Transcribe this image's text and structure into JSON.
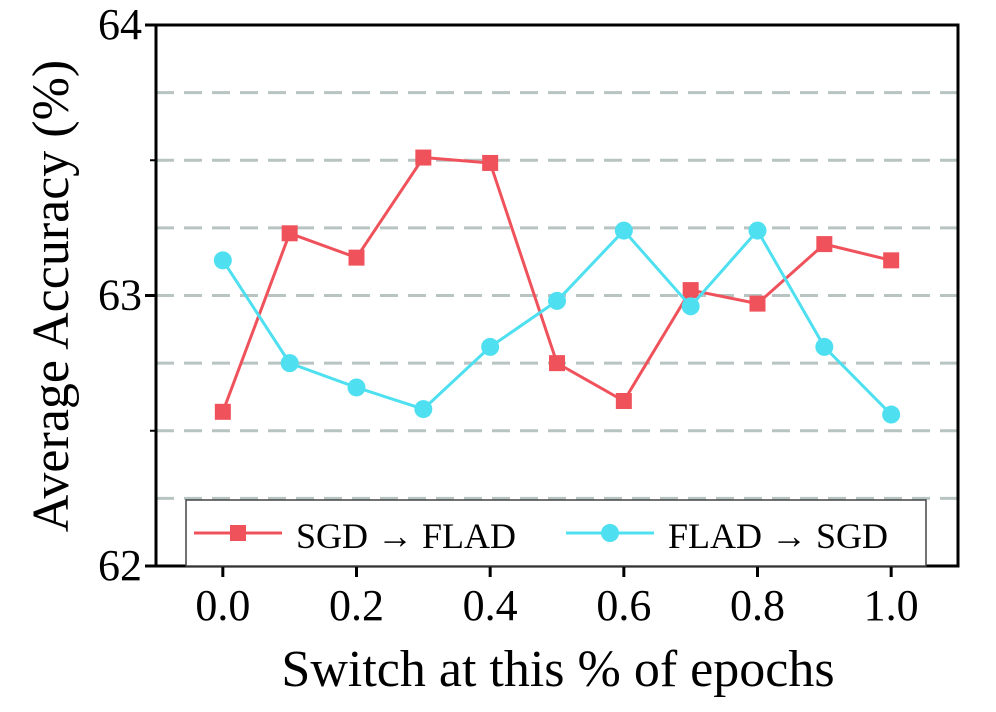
{
  "chart_data": {
    "type": "line",
    "xlabel": "Switch at this % of epochs",
    "ylabel": "Average Accuracy (%)",
    "xlim": [
      -0.1,
      1.1
    ],
    "ylim": [
      62,
      64
    ],
    "x_ticks": [
      0.0,
      0.2,
      0.4,
      0.6,
      0.8,
      1.0
    ],
    "x_tick_labels": [
      "0.0",
      "0.2",
      "0.4",
      "0.6",
      "0.8",
      "1.0"
    ],
    "y_ticks": [
      62,
      63,
      64
    ],
    "y_tick_labels": [
      "62",
      "63",
      "64"
    ],
    "y_minor_ticks": [
      62.5,
      63.5
    ],
    "gridlines_y": [
      62.25,
      62.5,
      62.75,
      63.0,
      63.25,
      63.5,
      63.75
    ],
    "grid": "horizontal dashed",
    "legend_position": "bottom",
    "x": [
      0.0,
      0.1,
      0.2,
      0.3,
      0.4,
      0.5,
      0.6,
      0.7,
      0.8,
      0.9,
      1.0
    ],
    "series": [
      {
        "name": "SGD → FLAD",
        "color": "#f0525c",
        "marker": "square",
        "values": [
          62.57,
          63.23,
          63.14,
          63.51,
          63.49,
          62.75,
          62.61,
          63.02,
          62.97,
          63.19,
          63.13
        ]
      },
      {
        "name": "FLAD → SGD",
        "color": "#4ee0f0",
        "marker": "circle",
        "values": [
          63.13,
          62.75,
          62.66,
          62.58,
          62.81,
          62.98,
          63.24,
          62.96,
          63.24,
          62.81,
          62.56
        ]
      }
    ]
  }
}
